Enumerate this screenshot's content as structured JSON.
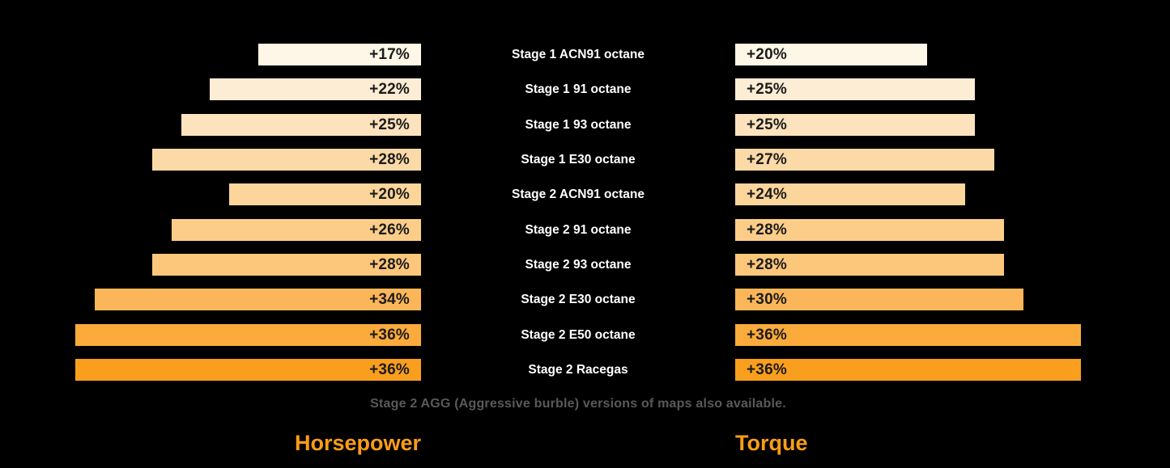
{
  "chart_data": {
    "type": "bar",
    "variant": "tornado",
    "categories": [
      "Stage 1 ACN91 octane",
      "Stage 1 91 octane",
      "Stage 1 93 octane",
      "Stage 1 E30 octane",
      "Stage 2 ACN91 octane",
      "Stage 2 91 octane",
      "Stage 2 93 octane",
      "Stage 2 E30 octane",
      "Stage 2 E50 octane",
      "Stage 2 Racegas"
    ],
    "series": [
      {
        "name": "Horsepower",
        "side": "left",
        "values": [
          17,
          22,
          25,
          28,
          20,
          26,
          28,
          34,
          36,
          36
        ]
      },
      {
        "name": "Torque",
        "side": "right",
        "values": [
          20,
          25,
          25,
          27,
          24,
          28,
          28,
          30,
          36,
          36
        ]
      }
    ],
    "value_prefix": "+",
    "value_unit": "%",
    "left_axis_title": "Horsepower",
    "right_axis_title": "Torque",
    "footnote": "Stage 2 AGG (Aggressive burble) versions of maps also available.",
    "legend_position": "bottom",
    "grid": false,
    "colors": {
      "background": "#000000",
      "bar_value_text": "#1B1B1B",
      "category_text": "#FFFFFF",
      "footnote_text": "#58595B",
      "axis_title_text": "#FB9E16",
      "row_bar_colors": [
        "#FEF6E6",
        "#FCEDD4",
        "#FCE3BD",
        "#FCDAA7",
        "#FCD59B",
        "#FCCD89",
        "#FCC77B",
        "#FBB659",
        "#FAAB3B",
        "#F99F1D"
      ]
    }
  },
  "rows": [
    {
      "label": "Stage 1 ACN91 octane",
      "hp": 17,
      "hp_text": "+17%",
      "tq": 20,
      "tq_text": "+20%",
      "color": "#FEF6E6"
    },
    {
      "label": "Stage 1 91 octane",
      "hp": 22,
      "hp_text": "+22%",
      "tq": 25,
      "tq_text": "+25%",
      "color": "#FCEDD4"
    },
    {
      "label": "Stage 1 93 octane",
      "hp": 25,
      "hp_text": "+25%",
      "tq": 25,
      "tq_text": "+25%",
      "color": "#FCE3BD"
    },
    {
      "label": "Stage 1 E30 octane",
      "hp": 28,
      "hp_text": "+28%",
      "tq": 27,
      "tq_text": "+27%",
      "color": "#FCDAA7"
    },
    {
      "label": "Stage 2 ACN91 octane",
      "hp": 20,
      "hp_text": "+20%",
      "tq": 24,
      "tq_text": "+24%",
      "color": "#FCD59B"
    },
    {
      "label": "Stage 2 91 octane",
      "hp": 26,
      "hp_text": "+26%",
      "tq": 28,
      "tq_text": "+28%",
      "color": "#FCCD89"
    },
    {
      "label": "Stage 2 93 octane",
      "hp": 28,
      "hp_text": "+28%",
      "tq": 28,
      "tq_text": "+28%",
      "color": "#FCC77B"
    },
    {
      "label": "Stage 2 E30 octane",
      "hp": 34,
      "hp_text": "+34%",
      "tq": 30,
      "tq_text": "+30%",
      "color": "#FBB659"
    },
    {
      "label": "Stage 2 E50 octane",
      "hp": 36,
      "hp_text": "+36%",
      "tq": 36,
      "tq_text": "+36%",
      "color": "#FAAB3B"
    },
    {
      "label": "Stage 2 Racegas",
      "hp": 36,
      "hp_text": "+36%",
      "tq": 36,
      "tq_text": "+36%",
      "color": "#F99F1D"
    }
  ]
}
